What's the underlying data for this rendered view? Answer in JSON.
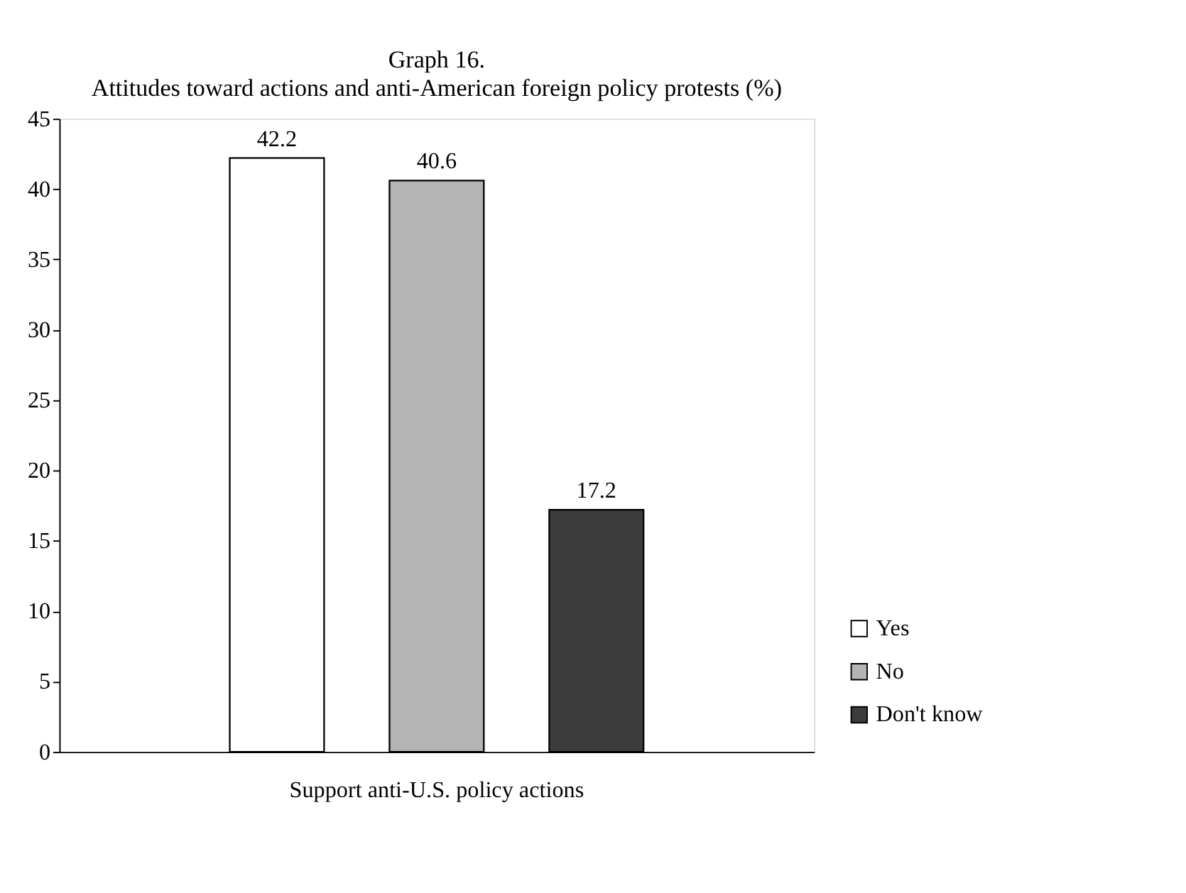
{
  "chart_data": {
    "type": "bar",
    "title": "Graph 16.",
    "subtitle": "Attitudes toward actions and anti-American foreign policy protests (%)",
    "categories": [
      "Support anti-U.S. policy actions"
    ],
    "series": [
      {
        "name": "Yes",
        "color": "#ffffff",
        "values": [
          42.2
        ]
      },
      {
        "name": "No",
        "color": "#b4b4b4",
        "values": [
          40.6
        ]
      },
      {
        "name": "Don't know",
        "color": "#3c3c3c",
        "values": [
          17.2
        ]
      }
    ],
    "ylim": [
      0,
      45
    ],
    "yticks": [
      0,
      5,
      10,
      15,
      20,
      25,
      30,
      35,
      40,
      45
    ],
    "grid": false,
    "legend": "bottom right",
    "data_labels": true
  }
}
